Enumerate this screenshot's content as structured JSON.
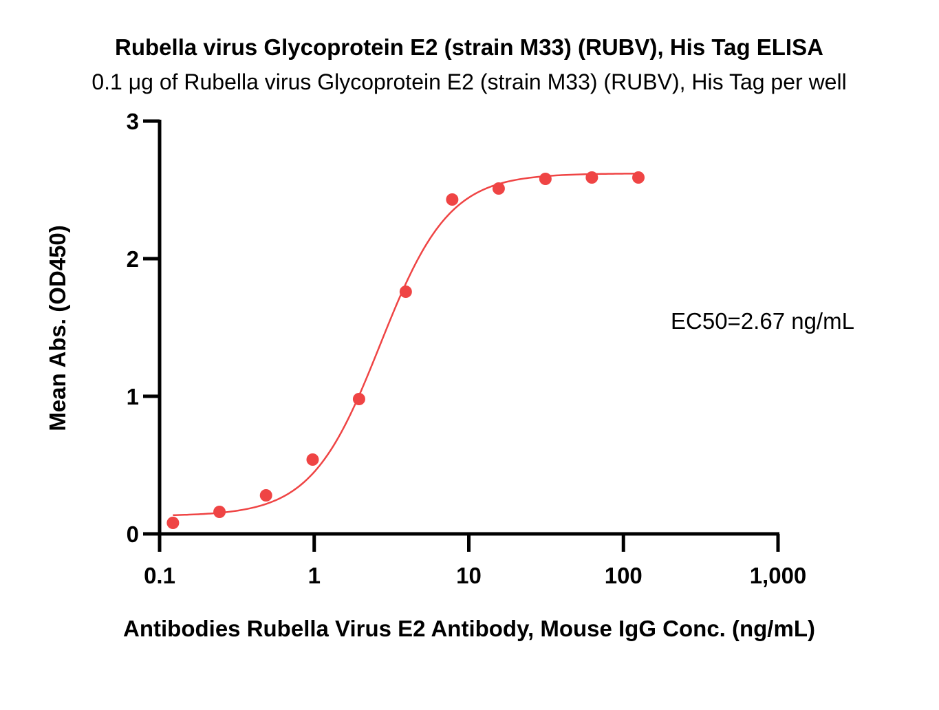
{
  "chart_data": {
    "type": "scatter",
    "title": "Rubella virus Glycoprotein E2 (strain M33) (RUBV), His Tag ELISA",
    "subtitle": "0.1 μg of Rubella virus Glycoprotein E2 (strain M33) (RUBV), His Tag per well",
    "xlabel": "Antibodies Rubella Virus E2 Antibody, Mouse IgG Conc. (ng/mL)",
    "ylabel": "Mean Abs. (OD450)",
    "xscale": "log",
    "xlim": [
      0.1,
      1000
    ],
    "ylim": [
      0,
      3
    ],
    "x_ticks": [
      {
        "value": 0.1,
        "label": "0.1"
      },
      {
        "value": 1,
        "label": "1"
      },
      {
        "value": 10,
        "label": "10"
      },
      {
        "value": 100,
        "label": "100"
      },
      {
        "value": 1000,
        "label": "1,000"
      }
    ],
    "y_ticks": [
      {
        "value": 0,
        "label": "0"
      },
      {
        "value": 1,
        "label": "1"
      },
      {
        "value": 2,
        "label": "2"
      },
      {
        "value": 3,
        "label": "3"
      }
    ],
    "grid": false,
    "legend": "none",
    "color": "#ef4444",
    "series": [
      {
        "points": [
          {
            "x": 0.122,
            "y": 0.08
          },
          {
            "x": 0.244,
            "y": 0.16
          },
          {
            "x": 0.488,
            "y": 0.28
          },
          {
            "x": 0.977,
            "y": 0.54
          },
          {
            "x": 1.95,
            "y": 0.98
          },
          {
            "x": 3.91,
            "y": 1.76
          },
          {
            "x": 7.81,
            "y": 2.43
          },
          {
            "x": 15.6,
            "y": 2.51
          },
          {
            "x": 31.3,
            "y": 2.58
          },
          {
            "x": 62.5,
            "y": 2.59
          },
          {
            "x": 125,
            "y": 2.59
          }
        ],
        "fit": {
          "model": "4PL",
          "bottom": 0.13,
          "top": 2.62,
          "ec50": 2.67,
          "hill": 1.95,
          "x_range": [
            0.122,
            125
          ]
        }
      }
    ],
    "annotations": [
      {
        "text": "EC50=2.67 ng/mL"
      }
    ]
  }
}
